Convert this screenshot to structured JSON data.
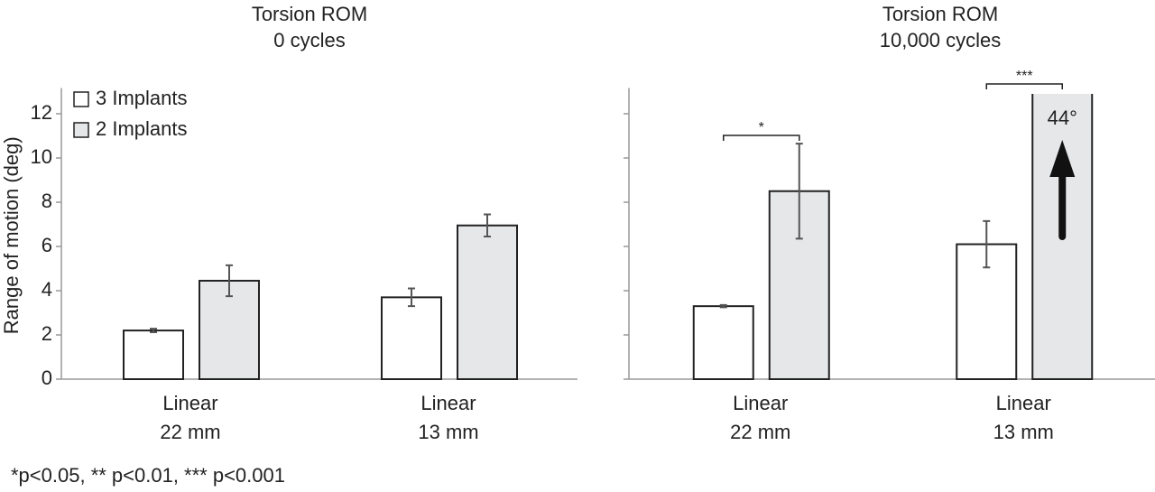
{
  "footnote": "*p<0.05,  ** p<0.01,  *** p<0.001",
  "chart_data": [
    {
      "type": "bar",
      "title": "Torsion ROM",
      "subtitle": "0 cycles",
      "ylabel": "Range of motion (deg)",
      "categories": [
        [
          "Linear",
          "22 mm"
        ],
        [
          "Linear",
          "13 mm"
        ]
      ],
      "series": [
        {
          "name": "3 Implants",
          "color": "#ffffff",
          "values": [
            2.2,
            3.7
          ],
          "errors": [
            0.08,
            0.4
          ]
        },
        {
          "name": "2 Implants",
          "color": "#e6e7e9",
          "values": [
            4.45,
            6.95
          ],
          "errors": [
            0.7,
            0.5
          ]
        }
      ],
      "ylim": [
        0,
        13
      ],
      "yticks": [
        0,
        2,
        4,
        6,
        8,
        10,
        12
      ],
      "ytick_labels": true,
      "legend": "upper left"
    },
    {
      "type": "bar",
      "title": "Torsion ROM",
      "subtitle": "10,000 cycles",
      "categories": [
        [
          "Linear",
          "22 mm"
        ],
        [
          "Linear",
          "13 mm"
        ]
      ],
      "series": [
        {
          "name": "3 Implants",
          "color": "#ffffff",
          "values": [
            3.3,
            6.1
          ],
          "errors": [
            0.05,
            1.05
          ]
        },
        {
          "name": "2 Implants",
          "color": "#e6e7e9",
          "values": [
            8.5,
            44
          ],
          "errors": [
            2.15,
            null
          ],
          "value_labels": [
            null,
            "44°"
          ]
        }
      ],
      "annotations": [
        "*",
        "***"
      ],
      "ylim": [
        0,
        13
      ],
      "yticks": [
        0,
        2,
        4,
        6,
        8,
        10,
        12
      ],
      "ytick_labels": false
    }
  ]
}
